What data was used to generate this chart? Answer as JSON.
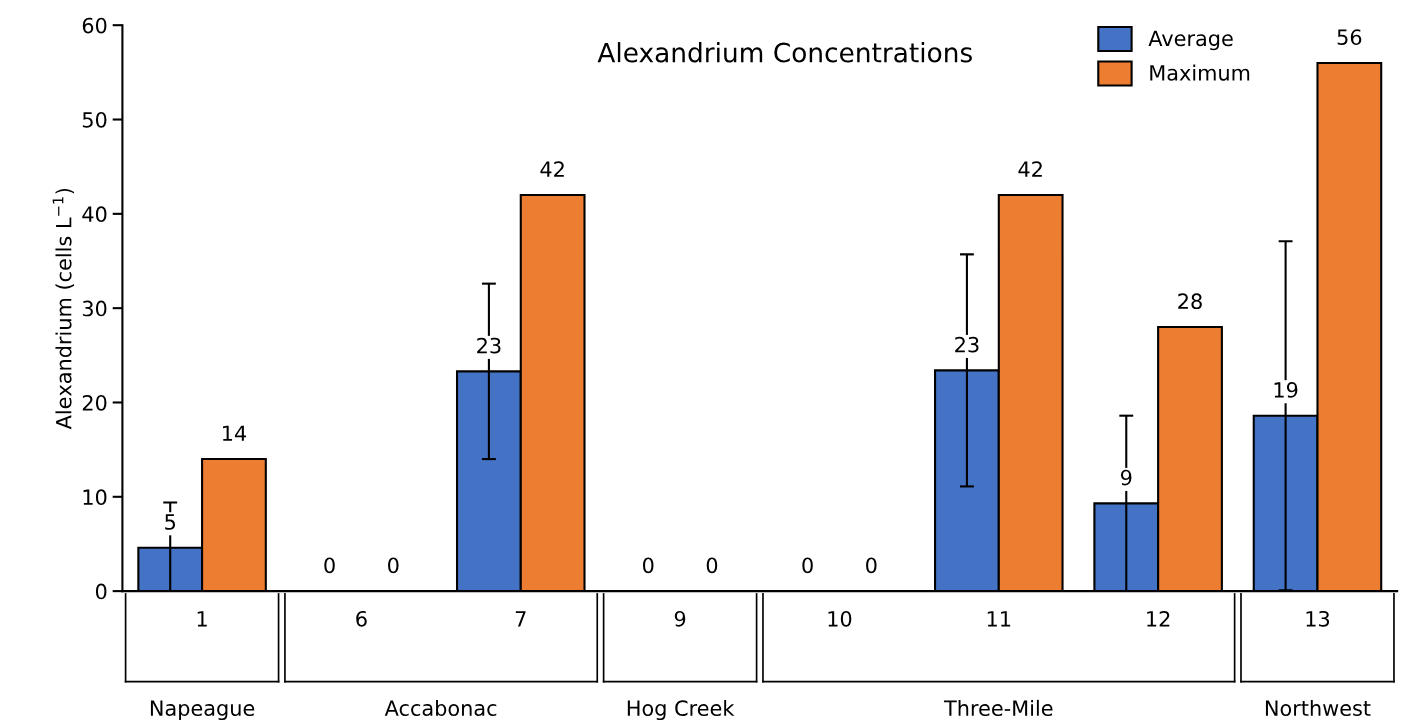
{
  "chart_data": {
    "type": "bar",
    "title": "Alexandrium Concentrations",
    "ylabel": "Alexandrium (cells L$^{−1}$)",
    "categories": [
      "1",
      "6",
      "7",
      "9",
      "10",
      "11",
      "12",
      "13"
    ],
    "series": [
      {
        "name": "Average",
        "color": "#4472c4",
        "values": [
          4.6,
          0,
          23.3,
          0,
          0,
          23.4,
          9.3,
          18.6
        ],
        "errors": [
          4.8,
          null,
          9.3,
          null,
          null,
          12.3,
          9.3,
          18.5
        ],
        "value_labels": [
          "5",
          "0",
          "23",
          "0",
          "0",
          "23",
          "9",
          "19"
        ]
      },
      {
        "name": "Maximum",
        "color": "#ed7d31",
        "values": [
          14,
          0,
          42,
          0,
          0,
          42,
          28,
          56
        ],
        "value_labels": [
          "14",
          "0",
          "42",
          "0",
          "0",
          "42",
          "28",
          "56"
        ]
      }
    ],
    "annotations": [
      "Napeague",
      "Accabonac",
      "Hog Creek",
      "Three-Mile",
      "Northwest"
    ],
    "ylim": [
      0,
      60
    ],
    "yticks": [
      0,
      10,
      20,
      30,
      40,
      50,
      60
    ],
    "grid": false,
    "legend": "top right"
  }
}
